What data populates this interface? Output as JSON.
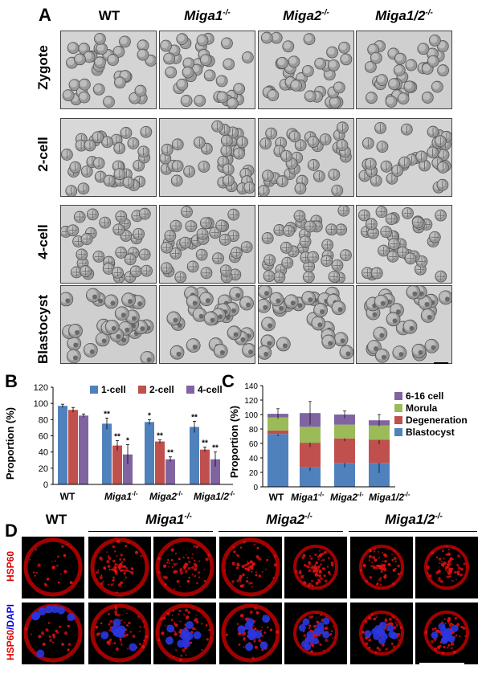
{
  "panel_a": {
    "letter": "A",
    "columns": [
      "WT",
      "Miga1",
      "Miga2",
      "Miga1/2"
    ],
    "column_sup": [
      "",
      "-/-",
      "-/-",
      "-/-"
    ],
    "rows": [
      "Zygote",
      "2-cell",
      "4-cell",
      "Blastocyst"
    ]
  },
  "panel_b": {
    "letter": "B",
    "ylabel": "Proportion (%)",
    "legend": [
      "1-cell",
      "2-cell",
      "4-cell"
    ],
    "yticks": [
      "0",
      "20",
      "40",
      "60",
      "80",
      "100",
      "120"
    ],
    "xticks": [
      "WT",
      "Miga1",
      "Miga2",
      "Miga1/2"
    ],
    "xtick_sup": [
      "",
      "-/-",
      "-/-",
      "-/-"
    ]
  },
  "panel_c": {
    "letter": "C",
    "ylabel": "Proportion (%)",
    "legend": [
      "6-16 cell",
      "Morula",
      "Degeneration",
      "Blastocyst"
    ],
    "yticks": [
      "0",
      "20",
      "40",
      "60",
      "80",
      "100",
      "120",
      "140"
    ],
    "xticks": [
      "WT",
      "Miga1",
      "Miga2",
      "Miga1/2"
    ],
    "xtick_sup": [
      "",
      "-/-",
      "-/-",
      "-/-"
    ]
  },
  "panel_d": {
    "letter": "D",
    "columns": [
      "WT",
      "Miga1",
      "Miga2",
      "Miga1/2"
    ],
    "column_sup": [
      "",
      "-/-",
      "-/-",
      "-/-"
    ],
    "row1_label": "HSP60",
    "row2_label_a": "HSP60",
    "row2_label_b": "/DAPI"
  },
  "colors": {
    "blue": "#4f81bd",
    "red": "#c0504d",
    "purple": "#8064a2",
    "green": "#9bbb59"
  },
  "chart_data": [
    {
      "type": "bar",
      "panel": "B",
      "categories": [
        "WT",
        "Miga1-/-",
        "Miga2-/-",
        "Miga1/2-/-"
      ],
      "ylabel": "Proportion (%)",
      "ylim": [
        0,
        120
      ],
      "series": [
        {
          "name": "1-cell",
          "values": [
            97,
            75,
            77,
            71
          ],
          "errors": [
            2,
            7,
            3,
            7
          ],
          "stars": [
            "",
            "**",
            "*",
            "**"
          ]
        },
        {
          "name": "2-cell",
          "values": [
            92,
            48,
            53,
            43
          ],
          "errors": [
            3,
            6,
            2,
            3
          ],
          "stars": [
            "",
            "**",
            "**",
            "**"
          ]
        },
        {
          "name": "4-cell",
          "values": [
            85,
            37,
            31,
            31
          ],
          "errors": [
            2,
            12,
            3,
            9
          ],
          "stars": [
            "",
            "*",
            "**",
            "**"
          ]
        }
      ]
    },
    {
      "type": "bar",
      "stacked": true,
      "panel": "C",
      "categories": [
        "WT",
        "Miga1-/-",
        "Miga2-/-",
        "Miga1/2-/-"
      ],
      "ylabel": "Proportion (%)",
      "ylim": [
        0,
        140
      ],
      "series": [
        {
          "name": "Blastocyst",
          "values": [
            73,
            27,
            33,
            33
          ],
          "errors": [
            3,
            5,
            6,
            14
          ]
        },
        {
          "name": "Degeneration",
          "values": [
            5,
            34,
            34,
            32
          ],
          "errors": [
            0,
            6,
            4,
            6
          ]
        },
        {
          "name": "Morula",
          "values": [
            18,
            22,
            19,
            20
          ],
          "errors": [
            0,
            0,
            0,
            0
          ]
        },
        {
          "name": "6-16 cell",
          "values": [
            5,
            19,
            14,
            7
          ],
          "errors": [
            7,
            16,
            5,
            8
          ]
        }
      ]
    }
  ]
}
